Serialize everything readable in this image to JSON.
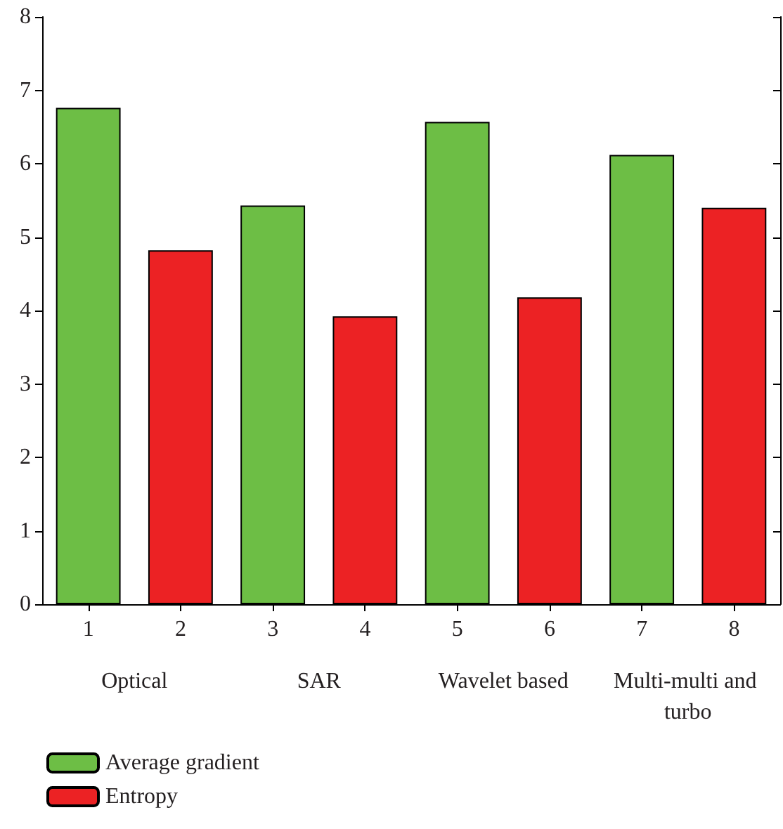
{
  "chart_data": {
    "type": "bar",
    "categories": [
      "1",
      "2",
      "3",
      "4",
      "5",
      "6",
      "7",
      "8"
    ],
    "series": [
      {
        "name": "Average gradient",
        "color": "#6dbe45",
        "values": [
          6.76,
          null,
          5.43,
          null,
          6.57,
          null,
          6.12,
          null
        ]
      },
      {
        "name": "Entropy",
        "color": "#ec2224",
        "values": [
          null,
          4.82,
          null,
          3.92,
          null,
          4.18,
          null,
          5.4
        ]
      }
    ],
    "ylim": [
      0,
      8
    ],
    "yticks": [
      0,
      1,
      2,
      3,
      4,
      5,
      6,
      7,
      8
    ],
    "grid": false,
    "legend": "bottom left",
    "annotations": [
      "Optical",
      "SAR",
      "Wavelet based",
      "Multi-multi and turbo"
    ]
  }
}
